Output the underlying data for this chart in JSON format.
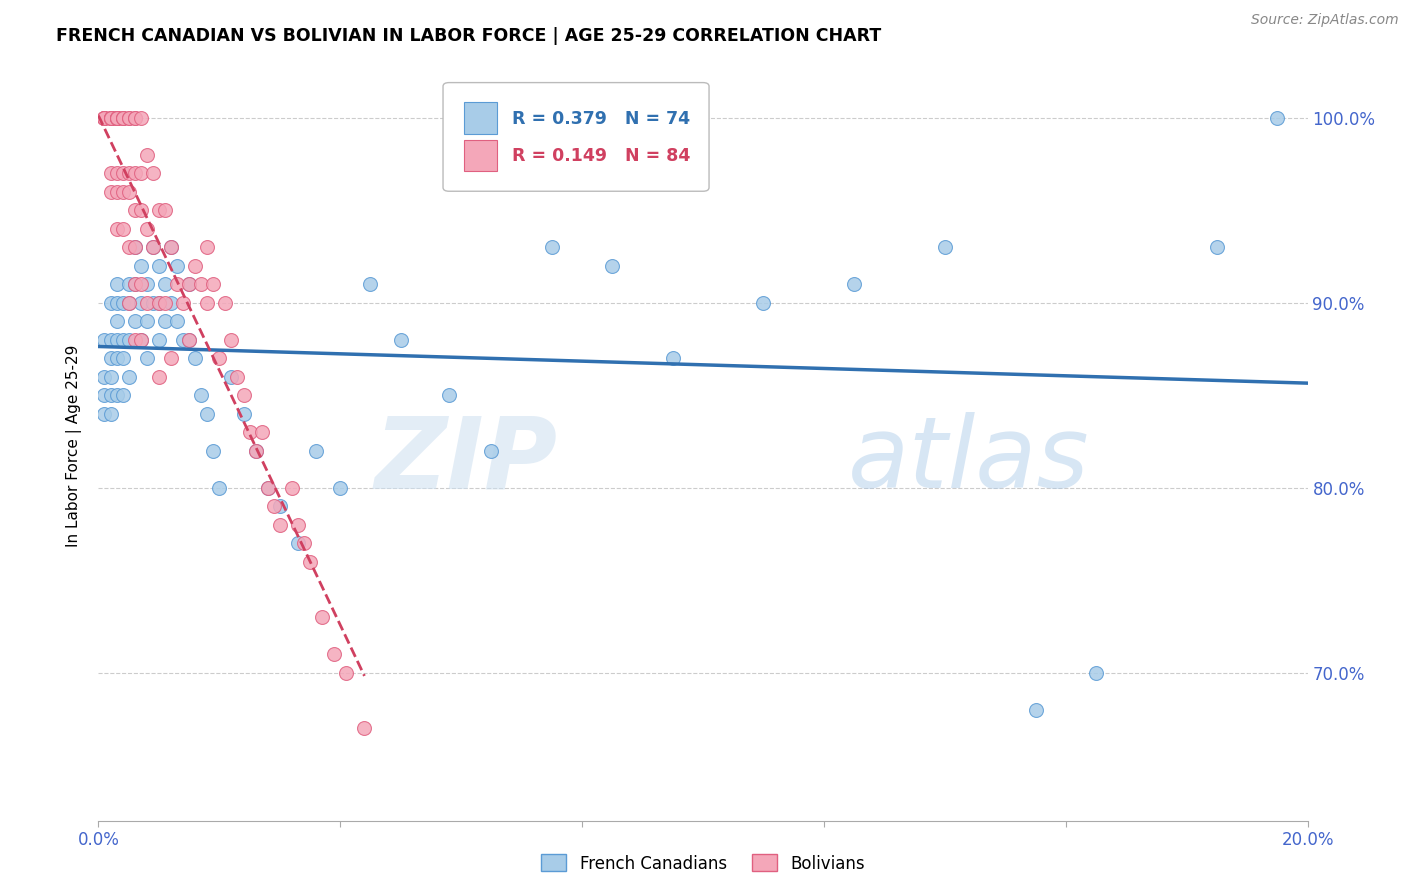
{
  "title": "FRENCH CANADIAN VS BOLIVIAN IN LABOR FORCE | AGE 25-29 CORRELATION CHART",
  "source": "Source: ZipAtlas.com",
  "ylabel": "In Labor Force | Age 25-29",
  "watermark_zip": "ZIP",
  "watermark_atlas": "atlas",
  "blue_label": "French Canadians",
  "pink_label": "Bolivians",
  "blue_R": 0.379,
  "blue_N": 74,
  "pink_R": 0.149,
  "pink_N": 84,
  "xlim": [
    0.0,
    0.2
  ],
  "ylim": [
    0.62,
    1.025
  ],
  "blue_color": "#a8cce8",
  "pink_color": "#f4a7b9",
  "blue_edge_color": "#5b9bd5",
  "pink_edge_color": "#e06080",
  "blue_line_color": "#3070b0",
  "pink_line_color": "#d04060",
  "grid_color": "#cccccc",
  "tick_color": "#4466cc",
  "blue_scatter_x": [
    0.001,
    0.001,
    0.001,
    0.001,
    0.002,
    0.002,
    0.002,
    0.002,
    0.002,
    0.002,
    0.003,
    0.003,
    0.003,
    0.003,
    0.003,
    0.003,
    0.004,
    0.004,
    0.004,
    0.004,
    0.005,
    0.005,
    0.005,
    0.005,
    0.006,
    0.006,
    0.006,
    0.007,
    0.007,
    0.007,
    0.008,
    0.008,
    0.008,
    0.009,
    0.009,
    0.01,
    0.01,
    0.01,
    0.011,
    0.011,
    0.012,
    0.012,
    0.013,
    0.013,
    0.014,
    0.015,
    0.015,
    0.016,
    0.017,
    0.018,
    0.019,
    0.02,
    0.022,
    0.024,
    0.026,
    0.028,
    0.03,
    0.033,
    0.036,
    0.04,
    0.045,
    0.05,
    0.058,
    0.065,
    0.075,
    0.085,
    0.095,
    0.11,
    0.125,
    0.14,
    0.155,
    0.165,
    0.185,
    0.195
  ],
  "blue_scatter_y": [
    0.88,
    0.86,
    0.85,
    0.84,
    0.9,
    0.88,
    0.87,
    0.86,
    0.85,
    0.84,
    0.91,
    0.9,
    0.89,
    0.88,
    0.87,
    0.85,
    0.9,
    0.88,
    0.87,
    0.85,
    0.91,
    0.9,
    0.88,
    0.86,
    0.93,
    0.91,
    0.89,
    0.92,
    0.9,
    0.88,
    0.91,
    0.89,
    0.87,
    0.93,
    0.9,
    0.92,
    0.9,
    0.88,
    0.91,
    0.89,
    0.93,
    0.9,
    0.92,
    0.89,
    0.88,
    0.91,
    0.88,
    0.87,
    0.85,
    0.84,
    0.82,
    0.8,
    0.86,
    0.84,
    0.82,
    0.8,
    0.79,
    0.77,
    0.82,
    0.8,
    0.91,
    0.88,
    0.85,
    0.82,
    0.93,
    0.92,
    0.87,
    0.9,
    0.91,
    0.93,
    0.68,
    0.7,
    0.93,
    1.0
  ],
  "pink_scatter_x": [
    0.001,
    0.001,
    0.001,
    0.001,
    0.001,
    0.002,
    0.002,
    0.002,
    0.002,
    0.002,
    0.002,
    0.002,
    0.003,
    0.003,
    0.003,
    0.003,
    0.003,
    0.003,
    0.003,
    0.003,
    0.004,
    0.004,
    0.004,
    0.004,
    0.004,
    0.004,
    0.005,
    0.005,
    0.005,
    0.005,
    0.005,
    0.005,
    0.006,
    0.006,
    0.006,
    0.006,
    0.006,
    0.006,
    0.006,
    0.007,
    0.007,
    0.007,
    0.007,
    0.007,
    0.008,
    0.008,
    0.008,
    0.009,
    0.009,
    0.01,
    0.01,
    0.01,
    0.011,
    0.011,
    0.012,
    0.012,
    0.013,
    0.014,
    0.015,
    0.015,
    0.016,
    0.017,
    0.018,
    0.018,
    0.019,
    0.02,
    0.021,
    0.022,
    0.023,
    0.024,
    0.025,
    0.026,
    0.027,
    0.028,
    0.029,
    0.03,
    0.032,
    0.033,
    0.034,
    0.035,
    0.037,
    0.039,
    0.041,
    0.044
  ],
  "pink_scatter_y": [
    1.0,
    1.0,
    1.0,
    1.0,
    1.0,
    1.0,
    1.0,
    1.0,
    1.0,
    1.0,
    0.97,
    0.96,
    1.0,
    1.0,
    1.0,
    1.0,
    1.0,
    0.97,
    0.96,
    0.94,
    1.0,
    1.0,
    1.0,
    0.97,
    0.96,
    0.94,
    1.0,
    1.0,
    0.97,
    0.96,
    0.93,
    0.9,
    1.0,
    1.0,
    0.97,
    0.95,
    0.93,
    0.91,
    0.88,
    1.0,
    0.97,
    0.95,
    0.91,
    0.88,
    0.98,
    0.94,
    0.9,
    0.97,
    0.93,
    0.95,
    0.9,
    0.86,
    0.95,
    0.9,
    0.93,
    0.87,
    0.91,
    0.9,
    0.91,
    0.88,
    0.92,
    0.91,
    0.93,
    0.9,
    0.91,
    0.87,
    0.9,
    0.88,
    0.86,
    0.85,
    0.83,
    0.82,
    0.83,
    0.8,
    0.79,
    0.78,
    0.8,
    0.78,
    0.77,
    0.76,
    0.73,
    0.71,
    0.7,
    0.67
  ]
}
